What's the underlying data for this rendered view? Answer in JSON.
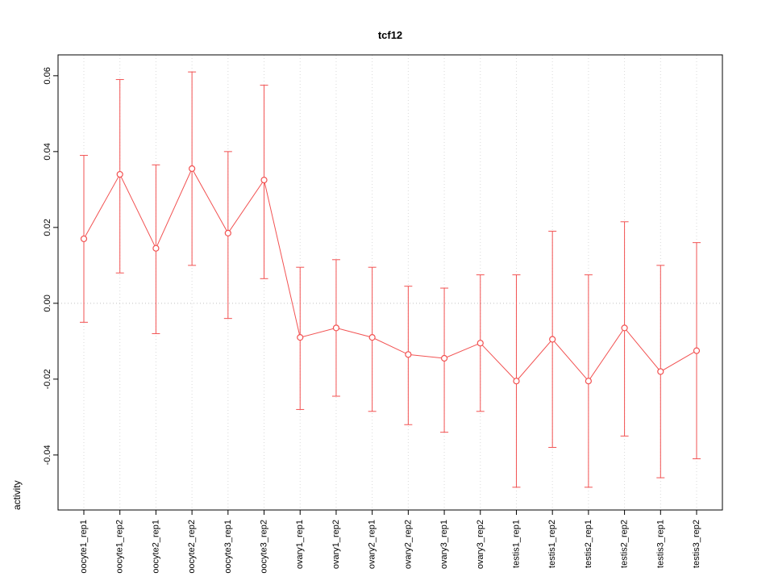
{
  "chart_data": {
    "type": "line",
    "title": "tcf12",
    "ylabel": "activity",
    "xlabel": "",
    "categories": [
      "oocyte1_rep1",
      "oocyte1_rep2",
      "oocyte2_rep1",
      "oocyte2_rep2",
      "oocyte3_rep1",
      "oocyte3_rep2",
      "ovary1_rep1",
      "ovary1_rep2",
      "ovary2_rep1",
      "ovary2_rep2",
      "ovary3_rep1",
      "ovary3_rep2",
      "testis1_rep1",
      "testis1_rep2",
      "testis2_rep1",
      "testis2_rep2",
      "testis3_rep1",
      "testis3_rep2"
    ],
    "series": [
      {
        "name": "activity",
        "means": [
          0.017,
          0.034,
          0.0145,
          0.0355,
          0.0185,
          0.0325,
          -0.009,
          -0.0065,
          -0.009,
          -0.0135,
          -0.0145,
          -0.0105,
          -0.0205,
          -0.0095,
          -0.0205,
          -0.0065,
          -0.018,
          -0.0125
        ],
        "upper": [
          0.039,
          0.059,
          0.0365,
          0.061,
          0.04,
          0.0575,
          0.0095,
          0.0115,
          0.0095,
          0.0045,
          0.004,
          0.0075,
          0.0075,
          0.019,
          0.0075,
          0.0215,
          0.01,
          0.016
        ],
        "lower": [
          -0.005,
          0.008,
          -0.008,
          0.01,
          -0.004,
          0.0065,
          -0.028,
          -0.0245,
          -0.0285,
          -0.032,
          -0.034,
          -0.0285,
          -0.0485,
          -0.038,
          -0.0485,
          -0.035,
          -0.046,
          -0.041
        ]
      }
    ],
    "ylim": [
      -0.0545,
      0.0655
    ],
    "yticks": [
      -0.04,
      -0.02,
      0.0,
      0.02,
      0.04,
      0.06
    ],
    "grid": "vertical-dotted",
    "zero_line": true,
    "point_style": "open-circle",
    "color": "#f25252",
    "grid_color": "#d9d9d9",
    "zero_line_color": "#c0c0c0"
  }
}
